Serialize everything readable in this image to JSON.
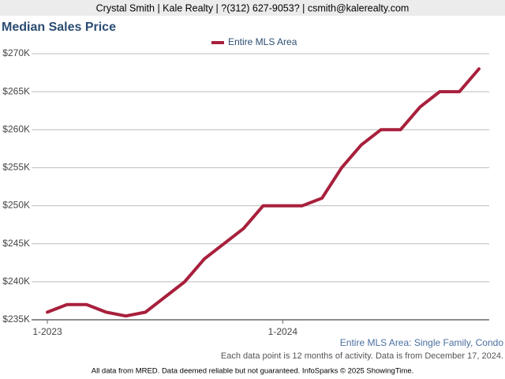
{
  "header": {
    "contact": "Crystal Smith | Kale Realty | ?(312) 627-9053? | csmith@kalerealty.com"
  },
  "chart_data": {
    "type": "line",
    "title": "Median Sales Price",
    "categories": [
      "1-2023",
      null,
      null,
      null,
      null,
      null,
      null,
      null,
      null,
      null,
      null,
      null,
      "1-2024",
      null,
      null,
      null,
      null,
      null,
      null,
      null,
      null,
      null,
      null
    ],
    "series": [
      {
        "name": "Entire MLS Area",
        "color": "#a8203c",
        "values": [
          236000,
          237000,
          237000,
          236000,
          235500,
          236000,
          238000,
          240000,
          243000,
          245000,
          247000,
          250000,
          250000,
          250000,
          251000,
          255000,
          258000,
          260000,
          260000,
          263000,
          265000,
          265000,
          268000
        ]
      }
    ],
    "ylim": [
      235000,
      270000
    ],
    "yticks": [
      {
        "value": 235000,
        "label": "$235K"
      },
      {
        "value": 240000,
        "label": "$240K"
      },
      {
        "value": 245000,
        "label": "$245K"
      },
      {
        "value": 250000,
        "label": "$250K"
      },
      {
        "value": 255000,
        "label": "$255K"
      },
      {
        "value": 260000,
        "label": "$260K"
      },
      {
        "value": 265000,
        "label": "$265K"
      },
      {
        "value": 270000,
        "label": "$270K"
      }
    ],
    "grid": true,
    "legend": "top"
  },
  "footer": {
    "area": "Entire MLS Area: Single Family, Condo",
    "note": "Each data point is 12 months of activity. Data is from December 17, 2024.",
    "disclaimer": "All data from MRED. Data deemed reliable but not guaranteed. InfoSparks © 2025 ShowingTime."
  }
}
